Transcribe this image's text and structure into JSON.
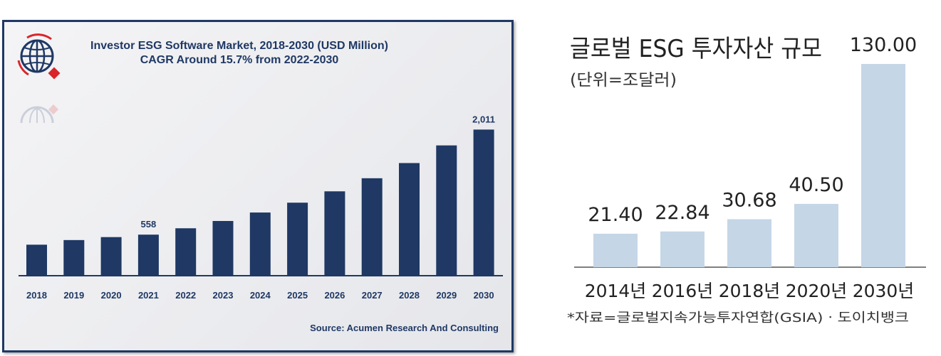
{
  "chart_data": [
    {
      "type": "bar",
      "title": "Investor ESG Software Market, 2018-2030 (USD Million)",
      "subtitle": "CAGR Around 15.7% from 2022-2030",
      "source": "Source: Acumen Research And Consulting",
      "categories": [
        "2018",
        "2019",
        "2020",
        "2021",
        "2022",
        "2023",
        "2024",
        "2025",
        "2026",
        "2027",
        "2028",
        "2029",
        "2030"
      ],
      "values": [
        419,
        483,
        524,
        558,
        646,
        747,
        864,
        1000,
        1157,
        1338,
        1548,
        1792,
        2011
      ],
      "data_labels": {
        "3": "558",
        "12": "2,011"
      },
      "ylim": [
        0,
        2300
      ],
      "grid": false,
      "bar_color": "#1f3864"
    },
    {
      "type": "bar",
      "title": "글로벌 ESG 투자자산 규모",
      "subtitle": "(단위=조달러)",
      "source": "*자료=글로벌지속가능투자연합(GSIA)ㆍ도이치뱅크",
      "categories": [
        "2014년",
        "2016년",
        "2018년",
        "2020년",
        "2030년"
      ],
      "values": [
        21.4,
        22.84,
        30.68,
        40.5,
        130.0
      ],
      "data_labels": [
        "21.40",
        "22.84",
        "30.68",
        "40.50",
        "130.00"
      ],
      "ylim": [
        0,
        135
      ],
      "grid": false,
      "bar_color": "#c5d6e6"
    }
  ]
}
